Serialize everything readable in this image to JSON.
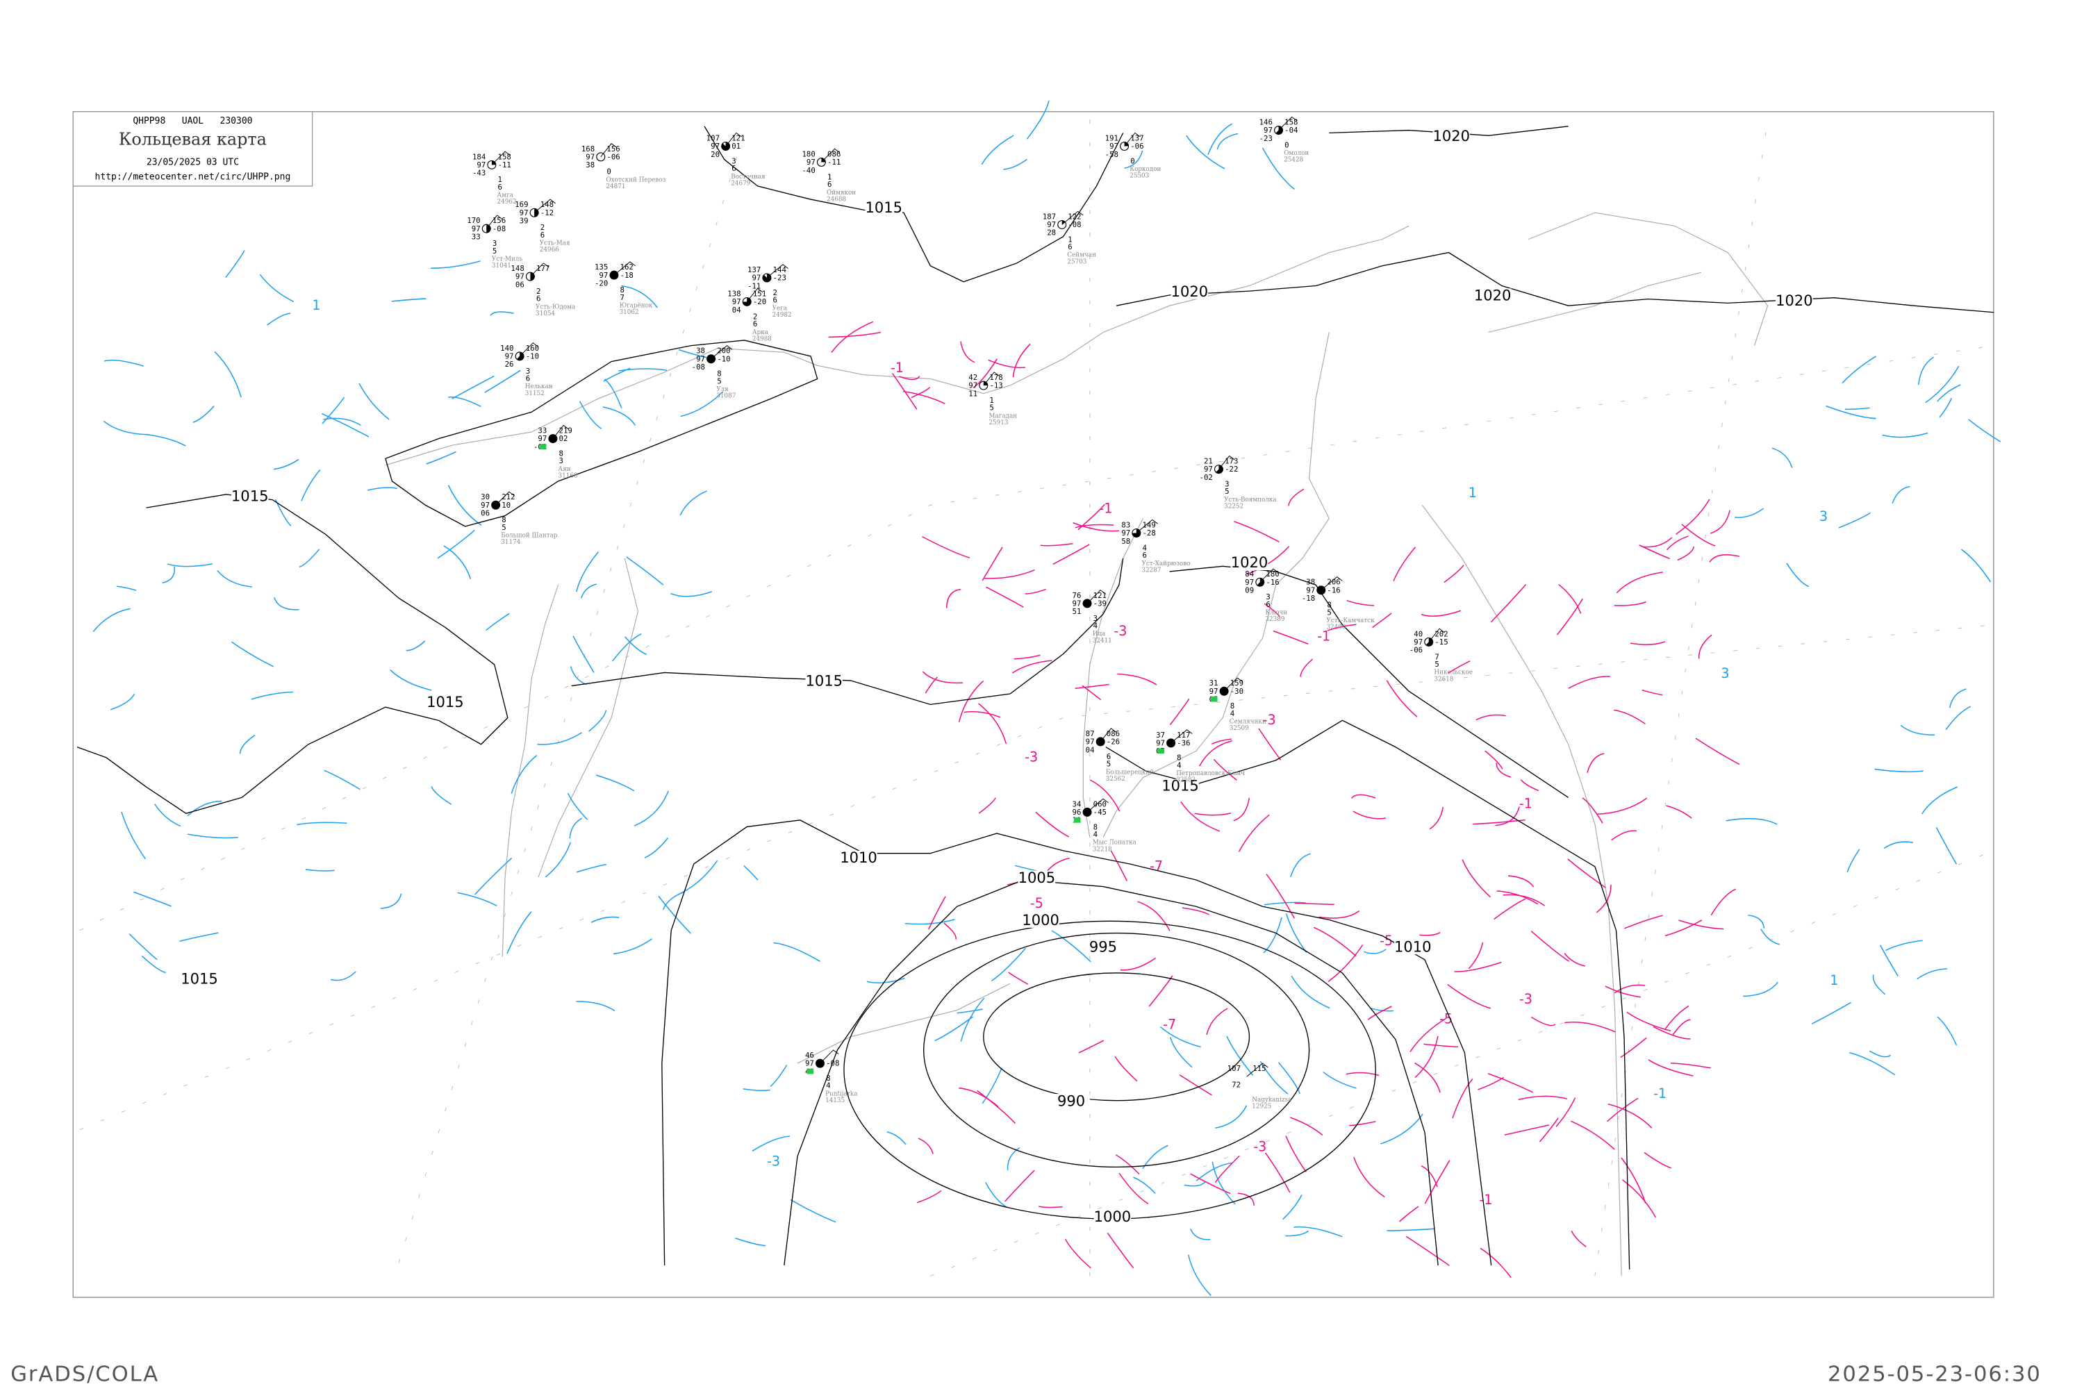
{
  "header": {
    "code_line": "QHPP98   UAOL   230300",
    "title": "Кольцевая карта",
    "datetime": "23/05/2025 03 UTC",
    "url": "http://meteocenter.net/circ/UHPP.png"
  },
  "footer": {
    "left": "GrADS/COLA",
    "right": "2025-05-23-06:30"
  },
  "colors": {
    "isobar": "#000000",
    "pressure_tendency_negative": "#ee1188",
    "pressure_tendency_positive": "#1ea0f0",
    "coastline": "#a8a8a8",
    "station_marker": "#22cc44"
  },
  "isobar_labels": [
    "1020",
    "1020",
    "1020",
    "1020",
    "1020",
    "1015",
    "1015",
    "1015",
    "1015",
    "1015",
    "1015",
    "1010",
    "1010",
    "1005",
    "1000",
    "1000",
    "995",
    "990"
  ],
  "tendency_labels": [
    "-1",
    "-1",
    "-1",
    "-1",
    "-1",
    "-3",
    "-3",
    "-3",
    "-3",
    "-3",
    "-5",
    "-5",
    "-5",
    "-7",
    "-7",
    "1",
    "1",
    "1",
    "3",
    "3",
    "-3",
    "-1"
  ],
  "stations": [
    {
      "name": "Аян",
      "id": "31168",
      "left": [
        "33",
        "97",
        "-02"
      ],
      "right": [
        "219",
        "02"
      ],
      "lower": [
        "8",
        "3"
      ],
      "cloud": 8,
      "marker": true
    },
    {
      "name": "Большой Шантар",
      "id": "31174",
      "left": [
        "30",
        "97",
        "06"
      ],
      "right": [
        "212",
        "10"
      ],
      "lower": [
        "8",
        "5"
      ],
      "cloud": 8
    },
    {
      "name": "Уст-Хайрюзово",
      "id": "32287",
      "left": [
        "83",
        "97",
        "58"
      ],
      "right": [
        "149",
        "-28"
      ],
      "lower": [
        "4",
        "6"
      ],
      "cloud": 6
    },
    {
      "name": "Усть-Воямполка",
      "id": "32252",
      "left": [
        "21",
        "97",
        "-02"
      ],
      "right": [
        "173",
        "-22"
      ],
      "lower": [
        "3",
        "5"
      ],
      "cloud": 5
    },
    {
      "name": "Ключи",
      "id": "32389",
      "left": [
        "84",
        "97",
        "09"
      ],
      "right": [
        "180",
        "-16"
      ],
      "lower": [
        "3",
        "6"
      ],
      "cloud": 5
    },
    {
      "name": "Усть-Камчатск",
      "id": "32408",
      "left": [
        "38",
        "97",
        "-18"
      ],
      "right": [
        "206",
        "-16"
      ],
      "lower": [
        "8",
        "5"
      ],
      "cloud": 8
    },
    {
      "name": "Никольское",
      "id": "32618",
      "left": [
        "40",
        "97",
        "-06"
      ],
      "right": [
        "202",
        "-15"
      ],
      "lower": [
        "7",
        "5"
      ],
      "cloud": 5
    },
    {
      "name": "Семлячики",
      "id": "32509",
      "left": [
        "31",
        "97",
        "05"
      ],
      "right": [
        "159",
        "-30"
      ],
      "lower": [
        "8",
        "4"
      ],
      "cloud": 8,
      "marker": true
    },
    {
      "name": "Петропавловск-Камч",
      "id": "32583",
      "left": [
        "37",
        "97",
        "07"
      ],
      "right": [
        "117",
        "-36"
      ],
      "lower": [
        "8",
        "4"
      ],
      "cloud": 8,
      "marker": true
    },
    {
      "name": "Большерецкий",
      "id": "32562",
      "left": [
        "87",
        "97",
        "04"
      ],
      "right": [
        "086",
        "-26"
      ],
      "lower": [
        "6",
        "5"
      ],
      "cloud": 8
    },
    {
      "name": "Ица",
      "id": "32411",
      "left": [
        "76",
        "97",
        "51"
      ],
      "right": [
        "121",
        "-39"
      ],
      "lower": [
        "3",
        "4"
      ],
      "cloud": 8
    },
    {
      "name": "Мыс Лопатка",
      "id": "32218",
      "left": [
        "34",
        "96",
        "11"
      ],
      "right": [
        "060",
        "-45"
      ],
      "lower": [
        "8",
        "4"
      ],
      "cloud": 8,
      "marker": true
    },
    {
      "name": "Охотский Перевоз",
      "id": "24871",
      "left": [
        "168",
        "97",
        "38"
      ],
      "right": [
        "156",
        "-06"
      ],
      "lower": [
        "0"
      ],
      "cloud": 0
    },
    {
      "name": "Амга",
      "id": "24962",
      "left": [
        "184",
        "97",
        "-43"
      ],
      "right": [
        "158",
        "-11"
      ],
      "lower": [
        "1",
        "6"
      ],
      "cloud": 2
    },
    {
      "name": "Усть-Мая",
      "id": "24966",
      "left": [
        "169",
        "97",
        "39"
      ],
      "right": [
        "148",
        "-12"
      ],
      "lower": [
        "2",
        "6"
      ],
      "cloud": 4
    },
    {
      "name": "Уст-Миль",
      "id": "31041",
      "left": [
        "170",
        "97",
        "33"
      ],
      "right": [
        "156",
        "-08"
      ],
      "lower": [
        "3",
        "5"
      ],
      "cloud": 4
    },
    {
      "name": "Усть-Юдома",
      "id": "31054",
      "left": [
        "148",
        "97",
        "06"
      ],
      "right": [
        "177"
      ],
      "lower": [
        "2",
        "6"
      ],
      "cloud": 4
    },
    {
      "name": "Югарёнок",
      "id": "31062",
      "left": [
        "135",
        "97",
        "-20"
      ],
      "right": [
        "162",
        "-18"
      ],
      "lower": [
        "8",
        "7"
      ],
      "cloud": 8
    },
    {
      "name": "Восточная",
      "id": "24679",
      "left": [
        "107",
        "97",
        "20"
      ],
      "right": [
        "121",
        "01"
      ],
      "lower": [
        "3",
        "6"
      ],
      "cloud": 7
    },
    {
      "name": "Оймякон",
      "id": "24688",
      "left": [
        "180",
        "97",
        "-40"
      ],
      "right": [
        "086",
        "-11"
      ],
      "lower": [
        "1",
        "6"
      ],
      "cloud": 2
    },
    {
      "name": "Уега",
      "id": "24982",
      "left": [
        "137",
        "97",
        "-11"
      ],
      "right": [
        "144",
        "-23"
      ],
      "lower": [
        "2",
        "6"
      ],
      "cloud": 7
    },
    {
      "name": "Арка",
      "id": "24988",
      "left": [
        "138",
        "97",
        "04"
      ],
      "right": [
        "151",
        "-20"
      ],
      "lower": [
        "2",
        "6"
      ],
      "cloud": 6
    },
    {
      "name": "Нелькан",
      "id": "31152",
      "left": [
        "140",
        "97",
        "26"
      ],
      "right": [
        "160",
        "-10"
      ],
      "lower": [
        "3",
        "6"
      ],
      "cloud": 5
    },
    {
      "name": "Уля",
      "id": "31087",
      "left": [
        "38",
        "97",
        "-08"
      ],
      "right": [
        "200",
        "-10"
      ],
      "lower": [
        "8",
        "5"
      ],
      "cloud": 8
    },
    {
      "name": "Коркодон",
      "id": "25503",
      "left": [
        "191",
        "97",
        "-58"
      ],
      "right": [
        "137",
        "-06"
      ],
      "lower": [
        "0"
      ],
      "cloud": 2
    },
    {
      "name": "Омолон",
      "id": "25428",
      "left": [
        "146",
        "97",
        "-23"
      ],
      "right": [
        "158",
        "-04"
      ],
      "lower": [
        "0"
      ],
      "cloud": 5
    },
    {
      "name": "Сеймчан",
      "id": "25703",
      "left": [
        "187",
        "97",
        "28"
      ],
      "right": [
        "122",
        "-08"
      ],
      "lower": [
        "1",
        "6"
      ],
      "cloud": 1
    },
    {
      "name": "Магадан",
      "id": "25913",
      "left": [
        "42",
        "97",
        "11"
      ],
      "right": [
        "178",
        "-13"
      ],
      "lower": [
        "1",
        "5"
      ],
      "cloud": 2
    },
    {
      "name": "Puntijarka",
      "id": "14135",
      "left": [
        "46",
        "97",
        "46"
      ],
      "right": [
        "",
        "-08"
      ],
      "lower": [
        "8",
        "4"
      ],
      "cloud": 8,
      "marker": true
    },
    {
      "name": "Nagykanizsa",
      "id": "12925",
      "left": [
        "107",
        "",
        "72"
      ],
      "right": [
        "115"
      ],
      "lower": [],
      "cloud": -1
    }
  ]
}
